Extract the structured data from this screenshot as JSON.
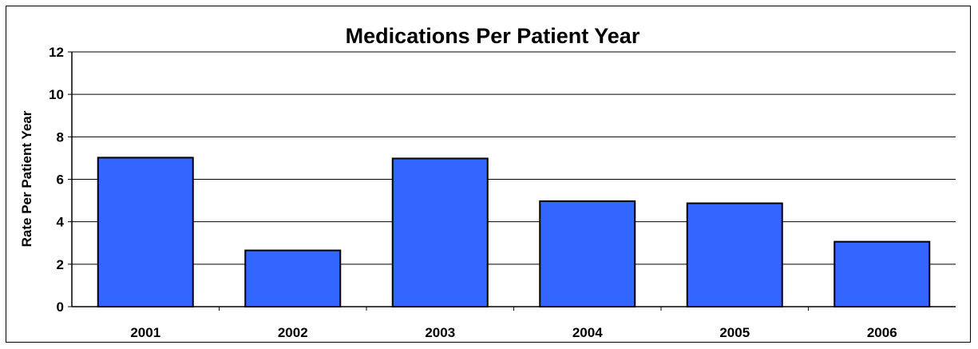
{
  "chart_data": {
    "type": "bar",
    "title": "Medications Per Patient Year",
    "xlabel": "",
    "ylabel": "Rate Per Patient Year",
    "categories": [
      "2001",
      "2002",
      "2003",
      "2004",
      "2005",
      "2006"
    ],
    "values": [
      7.02,
      2.65,
      6.98,
      4.97,
      4.87,
      3.06
    ],
    "ylim": [
      0,
      12
    ],
    "yticks": [
      "0",
      "2",
      "4",
      "6",
      "8",
      "10",
      "12"
    ],
    "grid": true,
    "legend": "none",
    "bar_color": "#3366FF",
    "bar_edge_color": "#000000"
  }
}
